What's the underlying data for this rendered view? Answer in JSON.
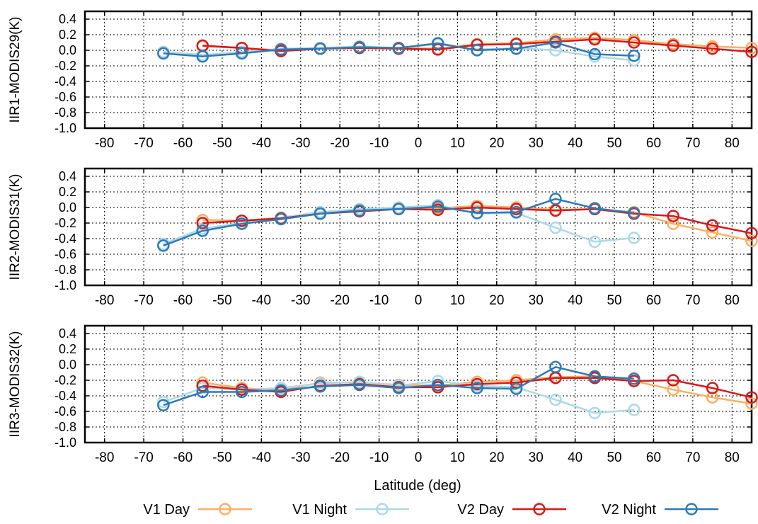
{
  "chart_data": [
    {
      "type": "line",
      "ylabel": "IIR1-MODIS29(K)",
      "xlim": [
        -85,
        85
      ],
      "ylim": [
        -1.0,
        0.5
      ],
      "xticks": [
        -80,
        -70,
        -60,
        -50,
        -40,
        -30,
        -20,
        -10,
        0,
        10,
        20,
        30,
        40,
        50,
        60,
        70,
        80
      ],
      "xtick_labels": [
        "-80",
        "-70",
        "-60",
        "-50",
        "-40",
        "-30",
        "-20",
        "-10",
        "0",
        "10",
        "20",
        "30",
        "40",
        "50",
        "60",
        "70",
        "80"
      ],
      "yticks": [
        0.4,
        0.2,
        0.0,
        -0.2,
        -0.4,
        -0.6,
        -0.8,
        -1.0
      ],
      "ytick_labels": [
        "0.4",
        "0.2",
        "0.0",
        "-0.2",
        "-0.4",
        "-0.6",
        "-0.8",
        "-1.0"
      ],
      "grid": true,
      "series": [
        {
          "name": "V1 Day",
          "color": "#fdae61",
          "x": [
            -55,
            -45,
            -35,
            -25,
            -15,
            -5,
            5,
            15,
            25,
            35,
            45,
            55,
            65,
            75,
            85
          ],
          "y": [
            0.05,
            0.03,
            0.0,
            0.03,
            0.04,
            0.03,
            0.02,
            0.08,
            0.09,
            0.14,
            0.16,
            0.13,
            0.08,
            0.05,
            0.03
          ]
        },
        {
          "name": "V1 Night",
          "color": "#abd9e9",
          "x": [
            -65,
            -55,
            -45,
            -35,
            -25,
            -15,
            -5,
            5,
            15,
            25,
            35,
            45,
            55
          ],
          "y": [
            -0.02,
            -0.06,
            -0.02,
            0.02,
            0.03,
            0.05,
            0.03,
            0.08,
            0.01,
            0.03,
            0.0,
            -0.08,
            -0.13
          ]
        },
        {
          "name": "V2 Day",
          "color": "#d7191c",
          "x": [
            -55,
            -45,
            -35,
            -25,
            -15,
            -5,
            5,
            15,
            25,
            35,
            45,
            55,
            65,
            75,
            85
          ],
          "y": [
            0.06,
            0.03,
            -0.01,
            0.02,
            0.03,
            0.02,
            0.01,
            0.07,
            0.08,
            0.11,
            0.14,
            0.1,
            0.06,
            0.02,
            -0.02
          ]
        },
        {
          "name": "V2 Night",
          "color": "#2c7bb6",
          "x": [
            -65,
            -55,
            -45,
            -35,
            -25,
            -15,
            -5,
            5,
            15,
            25,
            35,
            45,
            55
          ],
          "y": [
            -0.04,
            -0.08,
            -0.04,
            0.01,
            0.02,
            0.04,
            0.03,
            0.09,
            0.0,
            0.02,
            0.1,
            -0.05,
            -0.07
          ]
        }
      ]
    },
    {
      "type": "line",
      "ylabel": "IIR2-MODIS31(K)",
      "xlim": [
        -85,
        85
      ],
      "ylim": [
        -1.0,
        0.5
      ],
      "xticks": [
        -80,
        -70,
        -60,
        -50,
        -40,
        -30,
        -20,
        -10,
        0,
        10,
        20,
        30,
        40,
        50,
        60,
        70,
        80
      ],
      "xtick_labels": [
        "-80",
        "-70",
        "-60",
        "-50",
        "-40",
        "-30",
        "-20",
        "-10",
        "0",
        "10",
        "20",
        "30",
        "40",
        "50",
        "60",
        "70",
        "80"
      ],
      "yticks": [
        0.4,
        0.2,
        0.0,
        -0.2,
        -0.4,
        -0.6,
        -0.8,
        -1.0
      ],
      "ytick_labels": [
        "0.4",
        "0.2",
        "0.0",
        "-0.2",
        "-0.4",
        "-0.6",
        "-0.8",
        "-1.0"
      ],
      "grid": true,
      "series": [
        {
          "name": "V1 Day",
          "color": "#fdae61",
          "x": [
            -55,
            -45,
            -35,
            -25,
            -15,
            -5,
            5,
            15,
            25,
            35,
            45,
            55,
            65,
            75,
            85
          ],
          "y": [
            -0.16,
            -0.17,
            -0.13,
            -0.07,
            -0.04,
            -0.02,
            -0.01,
            0.02,
            0.0,
            -0.03,
            -0.02,
            -0.06,
            -0.21,
            -0.32,
            -0.43
          ]
        },
        {
          "name": "V1 Night",
          "color": "#abd9e9",
          "x": [
            -65,
            -55,
            -45,
            -35,
            -25,
            -15,
            -5,
            5,
            15,
            25,
            35,
            45,
            55
          ],
          "y": [
            -0.47,
            -0.27,
            -0.2,
            -0.13,
            -0.06,
            -0.02,
            0.0,
            0.03,
            -0.08,
            -0.07,
            -0.26,
            -0.44,
            -0.39
          ]
        },
        {
          "name": "V2 Day",
          "color": "#d7191c",
          "x": [
            -55,
            -45,
            -35,
            -25,
            -15,
            -5,
            5,
            15,
            25,
            35,
            45,
            55,
            65,
            75,
            85
          ],
          "y": [
            -0.2,
            -0.17,
            -0.14,
            -0.08,
            -0.05,
            -0.02,
            -0.03,
            0.0,
            -0.02,
            -0.04,
            -0.02,
            -0.08,
            -0.11,
            -0.23,
            -0.33
          ]
        },
        {
          "name": "V2 Night",
          "color": "#2c7bb6",
          "x": [
            -65,
            -55,
            -45,
            -35,
            -25,
            -15,
            -5,
            5,
            15,
            25,
            35,
            45,
            55
          ],
          "y": [
            -0.49,
            -0.3,
            -0.21,
            -0.15,
            -0.08,
            -0.04,
            -0.02,
            0.01,
            -0.07,
            -0.06,
            0.11,
            -0.01,
            -0.07
          ]
        }
      ]
    },
    {
      "type": "line",
      "ylabel": "IIR3-MODIS32(K)",
      "xlabel": "Latitude (deg)",
      "xlim": [
        -85,
        85
      ],
      "ylim": [
        -1.0,
        0.5
      ],
      "xticks": [
        -80,
        -70,
        -60,
        -50,
        -40,
        -30,
        -20,
        -10,
        0,
        10,
        20,
        30,
        40,
        50,
        60,
        70,
        80
      ],
      "xtick_labels": [
        "-80",
        "-70",
        "-60",
        "-50",
        "-40",
        "-30",
        "-20",
        "-10",
        "0",
        "10",
        "20",
        "30",
        "40",
        "50",
        "60",
        "70",
        "80"
      ],
      "yticks": [
        0.4,
        0.2,
        0.0,
        -0.2,
        -0.4,
        -0.6,
        -0.8,
        -1.0
      ],
      "ytick_labels": [
        "0.4",
        "0.2",
        "0.0",
        "-0.2",
        "-0.4",
        "-0.6",
        "-0.8",
        "-1.0"
      ],
      "grid": true,
      "series": [
        {
          "name": "V1 Day",
          "color": "#fdae61",
          "x": [
            -55,
            -45,
            -35,
            -25,
            -15,
            -5,
            5,
            15,
            25,
            35,
            45,
            55,
            65,
            75,
            85
          ],
          "y": [
            -0.23,
            -0.3,
            -0.33,
            -0.23,
            -0.23,
            -0.26,
            -0.27,
            -0.22,
            -0.2,
            -0.16,
            -0.15,
            -0.21,
            -0.32,
            -0.42,
            -0.5
          ]
        },
        {
          "name": "V1 Night",
          "color": "#abd9e9",
          "x": [
            -65,
            -55,
            -45,
            -35,
            -25,
            -15,
            -5,
            5,
            15,
            25,
            35,
            45,
            55
          ],
          "y": [
            -0.48,
            -0.3,
            -0.32,
            -0.3,
            -0.24,
            -0.22,
            -0.27,
            -0.21,
            -0.27,
            -0.29,
            -0.45,
            -0.62,
            -0.58
          ]
        },
        {
          "name": "V2 Day",
          "color": "#d7191c",
          "x": [
            -55,
            -45,
            -35,
            -25,
            -15,
            -5,
            5,
            15,
            25,
            35,
            45,
            55,
            65,
            75,
            85
          ],
          "y": [
            -0.27,
            -0.32,
            -0.35,
            -0.27,
            -0.25,
            -0.29,
            -0.29,
            -0.25,
            -0.23,
            -0.17,
            -0.17,
            -0.21,
            -0.2,
            -0.3,
            -0.42
          ]
        },
        {
          "name": "V2 Night",
          "color": "#2c7bb6",
          "x": [
            -65,
            -55,
            -45,
            -35,
            -25,
            -15,
            -5,
            5,
            15,
            25,
            35,
            45,
            55
          ],
          "y": [
            -0.52,
            -0.35,
            -0.35,
            -0.33,
            -0.28,
            -0.26,
            -0.3,
            -0.26,
            -0.3,
            -0.31,
            -0.03,
            -0.15,
            -0.18
          ]
        }
      ]
    }
  ],
  "legend": {
    "placement": "bottom",
    "items": [
      {
        "label": "V1 Day",
        "color": "#fdae61"
      },
      {
        "label": "V1 Night",
        "color": "#abd9e9"
      },
      {
        "label": "V2 Day",
        "color": "#d7191c"
      },
      {
        "label": "V2 Night",
        "color": "#2c7bb6"
      }
    ]
  }
}
